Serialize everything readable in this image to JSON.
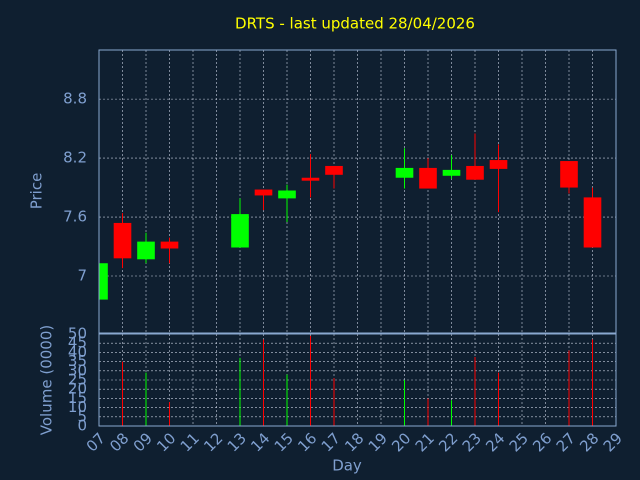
{
  "chart_data": {
    "type": "candlestick",
    "title": "DRTS - last updated 28/04/2026",
    "xlabel": "Day",
    "ylabel": "Price",
    "volume_label": "Volume (0000)",
    "up_color": "#00ff00",
    "down_color": "#ff0000",
    "grid": true,
    "x": [
      7,
      8,
      9,
      10,
      13,
      14,
      15,
      16,
      17,
      20,
      21,
      22,
      23,
      24,
      27,
      28
    ],
    "open": [
      6.76,
      7.54,
      7.17,
      7.35,
      7.29,
      7.88,
      7.79,
      8.0,
      8.12,
      8.0,
      8.1,
      8.02,
      8.12,
      8.18,
      8.17,
      7.8
    ],
    "high": [
      7.13,
      7.64,
      7.44,
      7.39,
      7.79,
      7.88,
      7.93,
      8.24,
      8.12,
      8.3,
      8.2,
      8.23,
      8.45,
      8.34,
      8.17,
      7.9
    ],
    "low": [
      6.76,
      7.08,
      7.13,
      7.13,
      7.29,
      7.67,
      7.55,
      7.8,
      7.89,
      7.89,
      7.89,
      7.99,
      7.98,
      7.65,
      7.84,
      7.29
    ],
    "close": [
      7.13,
      7.18,
      7.35,
      7.28,
      7.63,
      7.82,
      7.87,
      7.97,
      8.03,
      8.1,
      7.89,
      8.08,
      7.98,
      8.09,
      7.9,
      7.29
    ],
    "volume": [
      null,
      35,
      29,
      13,
      37,
      47,
      28,
      49,
      26,
      25,
      15,
      14,
      37.5,
      29,
      41,
      47
    ],
    "xlim": [
      7,
      29
    ],
    "xticks": [
      {
        "value": 7,
        "label": "07"
      },
      {
        "value": 8,
        "label": "08"
      },
      {
        "value": 9,
        "label": "09"
      },
      10,
      11,
      12,
      13,
      14,
      15,
      16,
      17,
      18,
      19,
      20,
      21,
      22,
      23,
      24,
      25,
      26,
      27,
      28,
      29
    ],
    "ylim": [
      6.42,
      9.3
    ],
    "yticks": [
      7,
      7.6,
      8.2,
      8.8
    ],
    "volume_ylim": [
      0,
      50
    ],
    "volume_yticks": [
      0,
      5,
      10,
      15,
      20,
      25,
      30,
      35,
      40,
      45,
      50
    ]
  }
}
